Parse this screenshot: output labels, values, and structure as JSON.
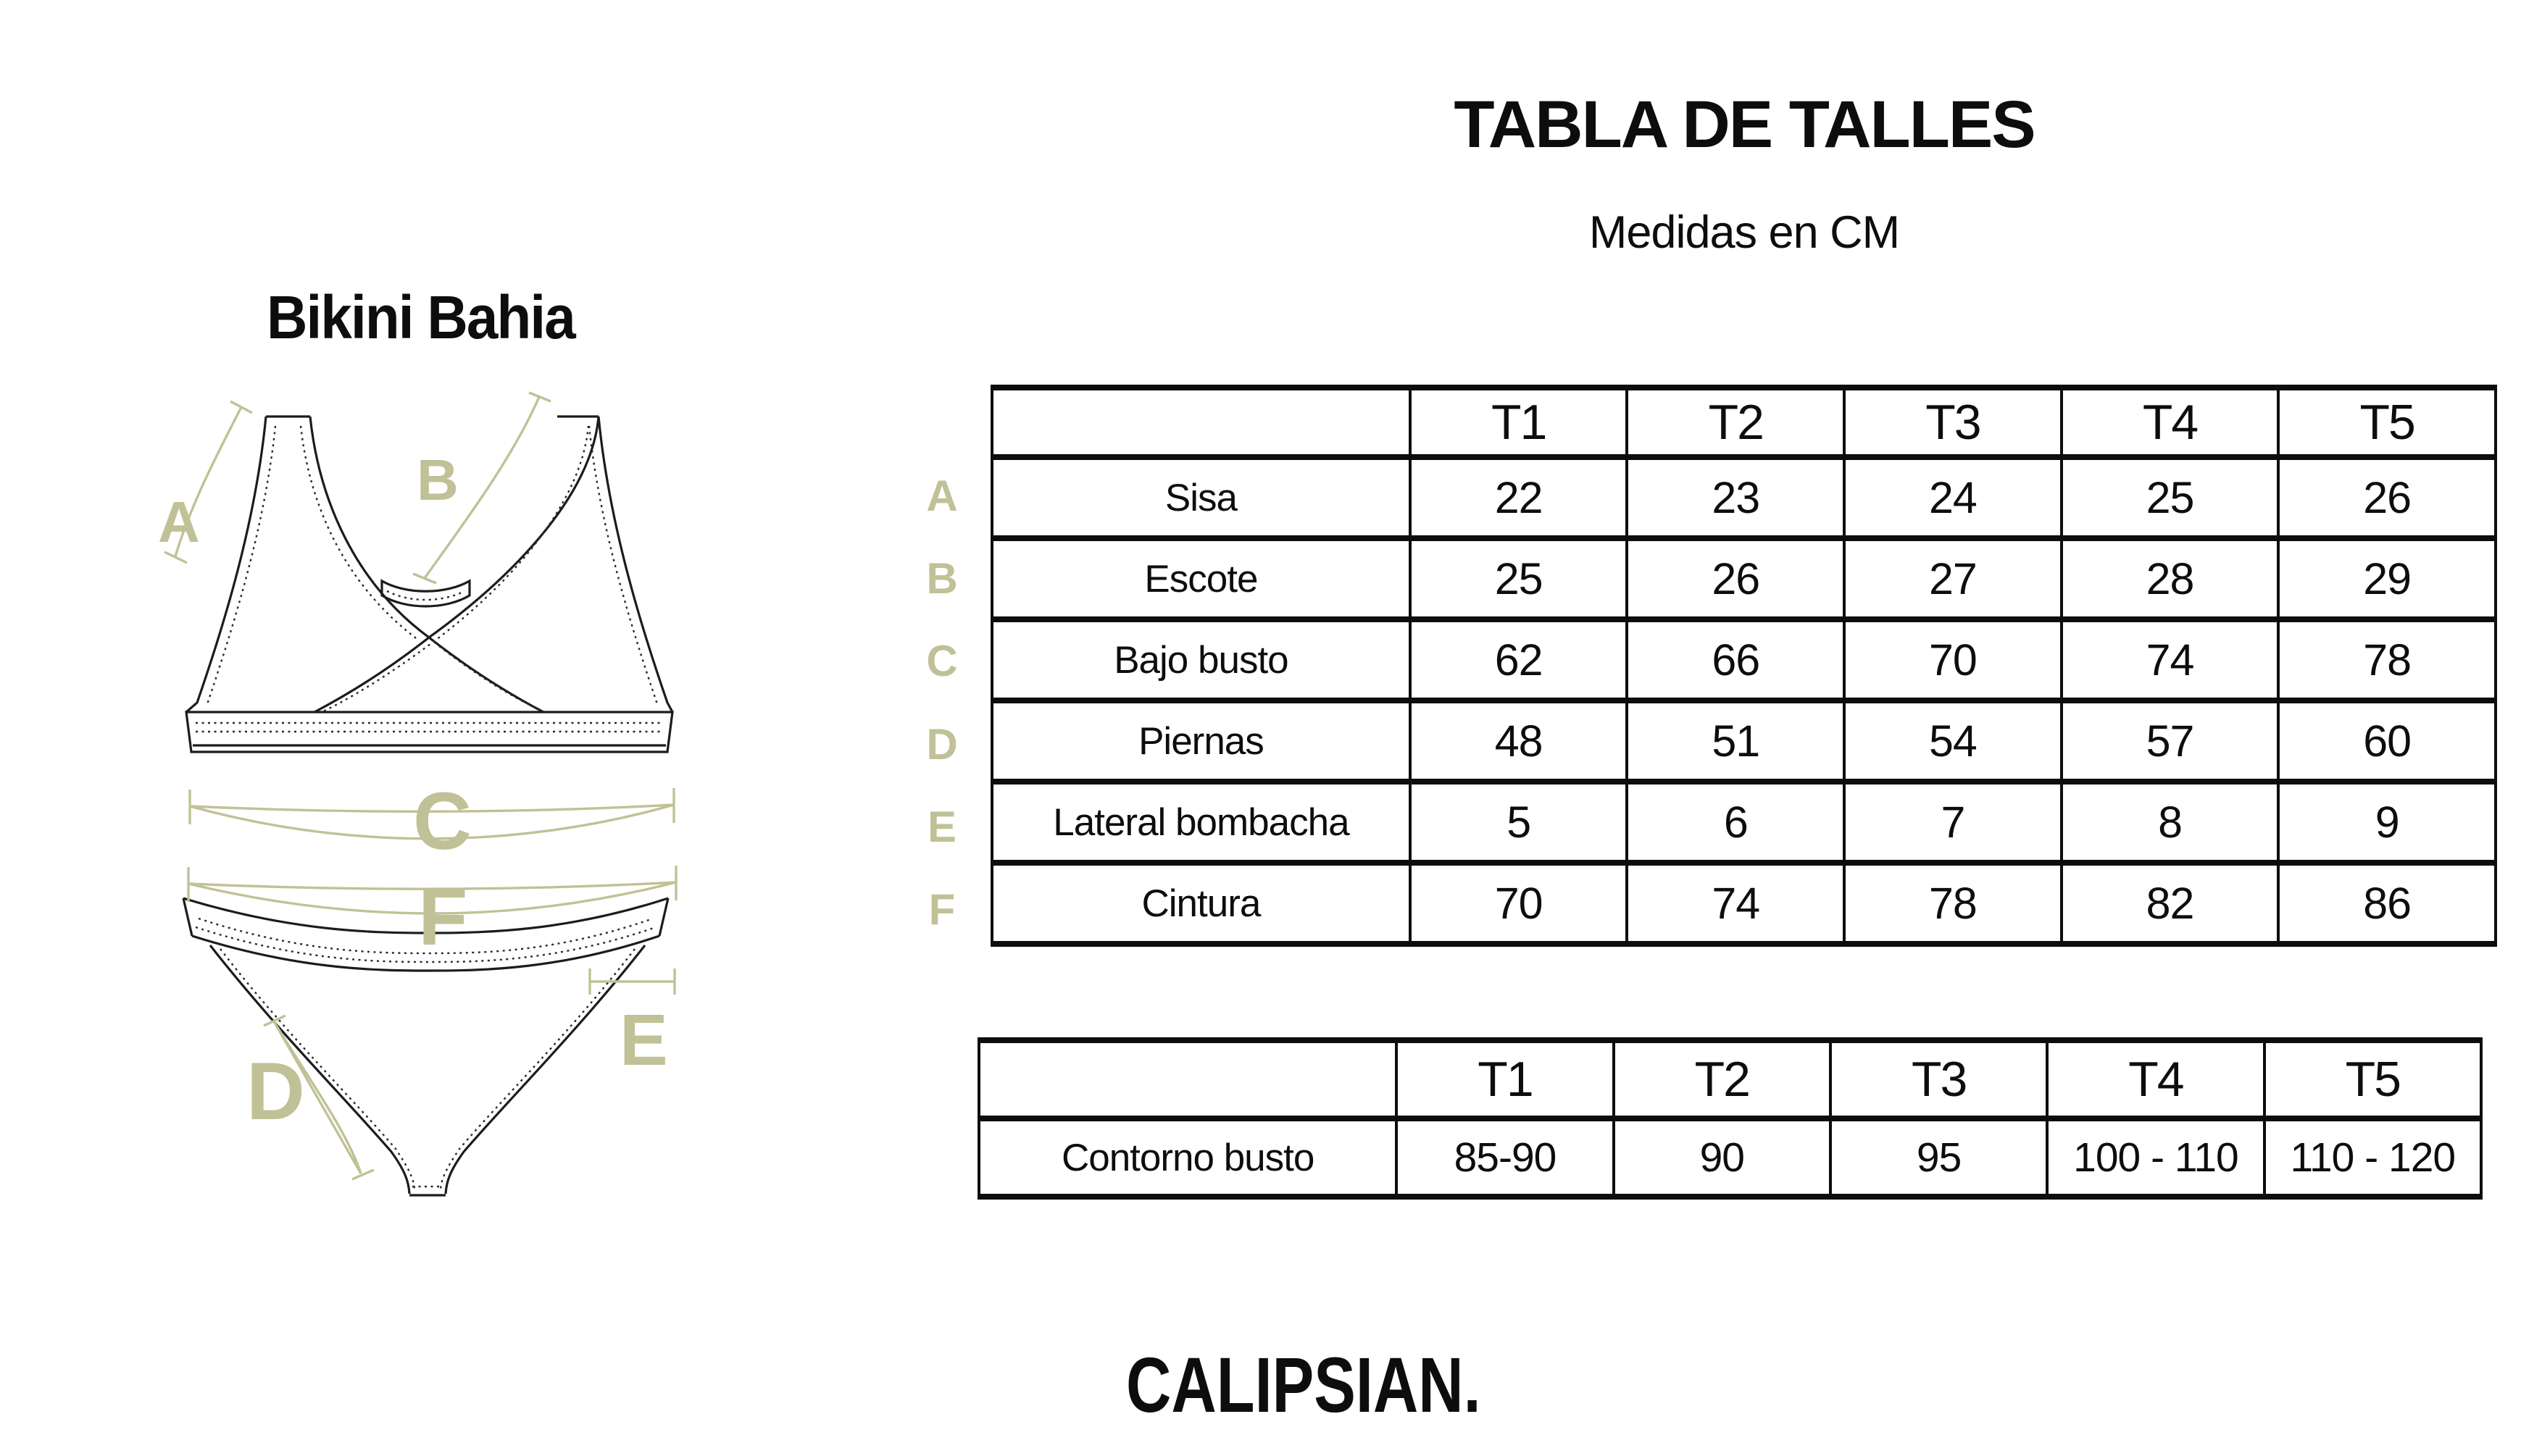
{
  "page": {
    "title": "TABLA DE TALLES",
    "subtitle": "Medidas en CM",
    "product_name": "Bikini Bahia",
    "brand": "CALIPSIAN."
  },
  "colors": {
    "accent": "#c1c197",
    "ink": "#0d0d0d"
  },
  "diagram": {
    "letters": {
      "a": "A",
      "b": "B",
      "c": "C",
      "d": "D",
      "e": "E",
      "f": "F"
    }
  },
  "size_table": {
    "columns": [
      "T1",
      "T2",
      "T3",
      "T4",
      "T5"
    ],
    "rows": [
      {
        "letter": "A",
        "label": "Sisa",
        "values": [
          "22",
          "23",
          "24",
          "25",
          "26"
        ]
      },
      {
        "letter": "B",
        "label": "Escote",
        "values": [
          "25",
          "26",
          "27",
          "28",
          "29"
        ]
      },
      {
        "letter": "C",
        "label": "Bajo busto",
        "values": [
          "62",
          "66",
          "70",
          "74",
          "78"
        ]
      },
      {
        "letter": "D",
        "label": "Piernas",
        "values": [
          "48",
          "51",
          "54",
          "57",
          "60"
        ]
      },
      {
        "letter": "E",
        "label": "Lateral bombacha",
        "values": [
          "5",
          "6",
          "7",
          "8",
          "9"
        ]
      },
      {
        "letter": "F",
        "label": "Cintura",
        "values": [
          "70",
          "74",
          "78",
          "82",
          "86"
        ]
      }
    ]
  },
  "bust_table": {
    "columns": [
      "T1",
      "T2",
      "T3",
      "T4",
      "T5"
    ],
    "rows": [
      {
        "label": "Contorno busto",
        "values": [
          "85-90",
          "90",
          "95",
          "100 - 110",
          "110 - 120"
        ]
      }
    ]
  }
}
